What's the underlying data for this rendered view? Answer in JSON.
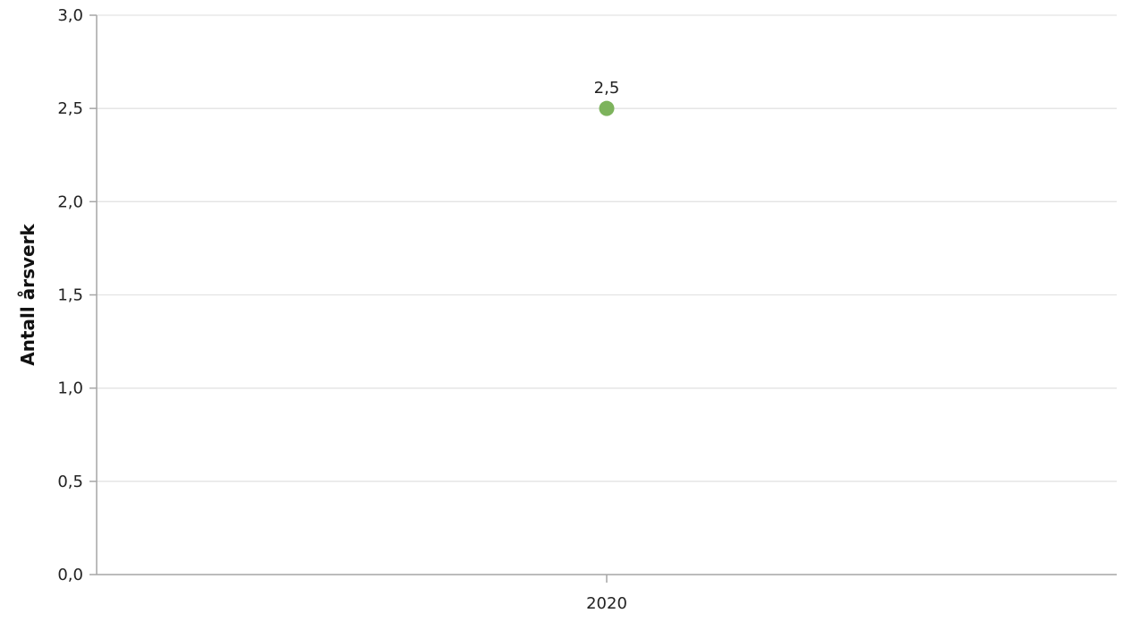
{
  "chart_data": {
    "type": "scatter",
    "title": "",
    "xlabel": "",
    "ylabel": "Antall årsverk",
    "categories": [
      "2020"
    ],
    "series": [
      {
        "values": [
          2.5
        ],
        "data_labels": [
          "2,5"
        ],
        "color": "#7db35c"
      }
    ],
    "ylim": [
      0,
      3
    ],
    "yticks": [
      0,
      0.5,
      1,
      1.5,
      2,
      2.5,
      3
    ],
    "ytick_labels": [
      "0,0",
      "0,5",
      "1,0",
      "1,5",
      "2,0",
      "2,5",
      "3,0"
    ],
    "grid": true,
    "legend": "none"
  }
}
